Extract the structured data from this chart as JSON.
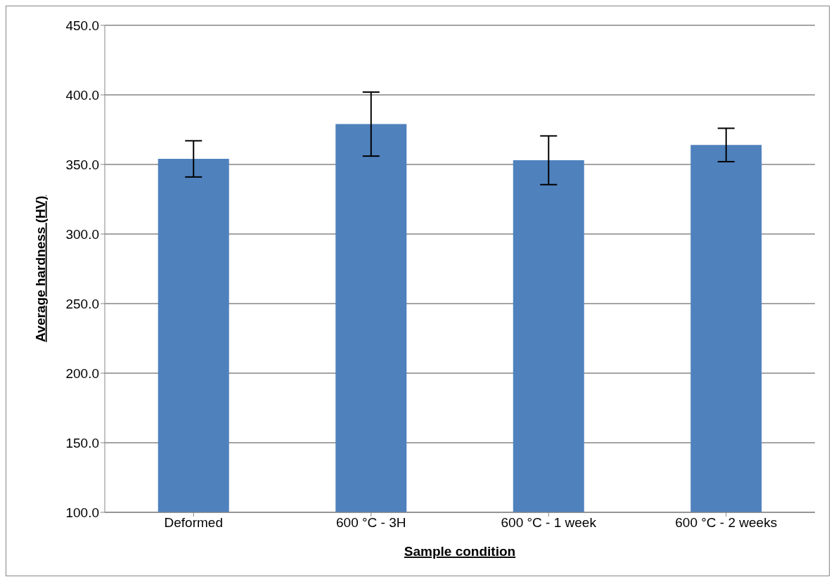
{
  "chart_data": {
    "type": "bar",
    "xlabel": "Sample condition",
    "ylabel": "Average hardness (HV)",
    "categories": [
      "Deformed",
      "600 °C - 3H",
      "600 °C - 1 week",
      "600 °C - 2 weeks"
    ],
    "values": [
      354,
      379,
      353,
      364
    ],
    "errors": [
      13,
      23,
      17.5,
      12
    ],
    "color": "#4f81bd",
    "ylim": [
      100,
      450
    ],
    "yticks": [
      {
        "value": 100,
        "label": "100.0"
      },
      {
        "value": 150,
        "label": "150.0"
      },
      {
        "value": 200,
        "label": "200.0"
      },
      {
        "value": 250,
        "label": "250.0"
      },
      {
        "value": 300,
        "label": "300.0"
      },
      {
        "value": 350,
        "label": "350.0"
      },
      {
        "value": 400,
        "label": "400.0"
      },
      {
        "value": 450,
        "label": "450.0"
      }
    ],
    "grid": "y",
    "legend": false
  }
}
